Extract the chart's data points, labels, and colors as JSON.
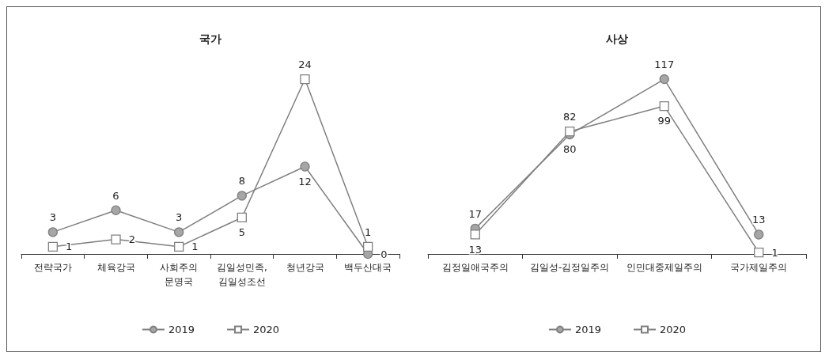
{
  "chart_data": [
    {
      "type": "line",
      "title": "국가",
      "categories": [
        "전략국가",
        "체육강국",
        "사회주의\n문명국",
        "김일성민족,\n김일성조선",
        "청년강국",
        "백두산대국"
      ],
      "series": [
        {
          "name": "2019",
          "color": "#a6a6a6",
          "marker": "circle",
          "values": [
            3,
            6,
            3,
            8,
            12,
            0
          ]
        },
        {
          "name": "2020",
          "color": "#808080",
          "marker": "square",
          "values": [
            1,
            2,
            1,
            5,
            24,
            1
          ]
        }
      ],
      "data_labels": true,
      "legend": "bottom",
      "line_style": "solid"
    },
    {
      "type": "line",
      "title": "사상",
      "categories": [
        "김정일애국주의",
        "김일성-김정일주의",
        "인민대중제일주의",
        "국가제일주의"
      ],
      "series": [
        {
          "name": "2019",
          "color": "#a6a6a6",
          "marker": "circle",
          "values": [
            17,
            80,
            117,
            13
          ]
        },
        {
          "name": "2020",
          "color": "#808080",
          "marker": "square",
          "values": [
            13,
            82,
            99,
            1
          ]
        }
      ],
      "data_labels": true,
      "legend": "bottom",
      "line_style": "solid"
    }
  ]
}
